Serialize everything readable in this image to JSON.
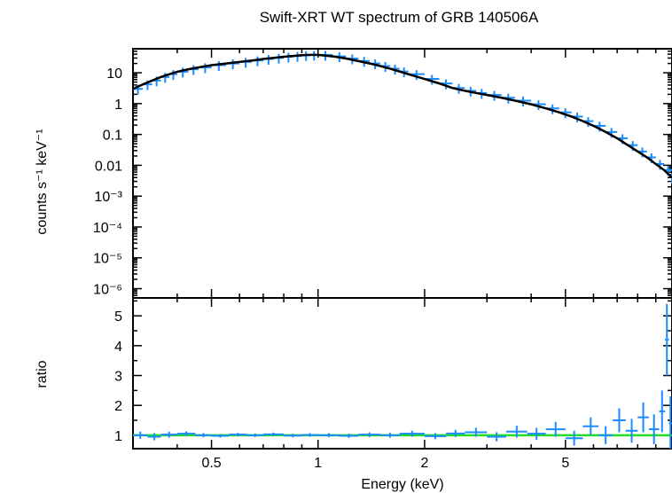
{
  "title": "Swift-XRT WT spectrum of GRB 140506A",
  "chart_data": {
    "type": "scatter",
    "title": "Swift-XRT WT spectrum of GRB 140506A",
    "xlabel": "Energy (keV)",
    "x_scale": "log",
    "xlim": [
      0.3,
      10
    ],
    "x_ticks": [
      0.5,
      1,
      2,
      5
    ],
    "x_tick_labels": [
      "0.5",
      "1",
      "2",
      "5"
    ],
    "panels": [
      {
        "name": "spectrum",
        "ylabel": "counts s⁻¹ keV⁻¹",
        "y_scale": "log",
        "ylim": [
          5e-07,
          60
        ],
        "y_ticks": [
          10,
          1,
          0.1,
          0.01,
          0.001,
          0.0001,
          1e-05,
          1e-06
        ],
        "y_tick_labels": [
          "10",
          "1",
          "0.1",
          "0.01",
          "10⁻³",
          "10⁻⁴",
          "10⁻⁵",
          "10⁻⁶"
        ],
        "data_color": "#1a8cff",
        "model_color": "#000000",
        "series": [
          {
            "kind": "data",
            "x": [
              0.3,
              0.32,
              0.34,
              0.36,
              0.38,
              0.4,
              0.43,
              0.46,
              0.5,
              0.55,
              0.6,
              0.65,
              0.7,
              0.75,
              0.8,
              0.85,
              0.9,
              0.95,
              1.0,
              1.1,
              1.2,
              1.3,
              1.4,
              1.5,
              1.6,
              1.7,
              1.8,
              2.0,
              2.2,
              2.4,
              2.6,
              2.8,
              3.0,
              3.3,
              3.6,
              4.0,
              4.4,
              4.8,
              5.2,
              5.6,
              6.0,
              6.5,
              7.0,
              7.5,
              8.0,
              8.5,
              9.0,
              9.5,
              10.0
            ],
            "y": [
              3.0,
              4.2,
              5.6,
              7.3,
              9.0,
              10.8,
              13.0,
              15.0,
              17.6,
              20.0,
              22.5,
              25.0,
              28.0,
              30.5,
              33.0,
              35.0,
              37.0,
              38.0,
              38.0,
              34.0,
              29.0,
              24.0,
              20.0,
              16.5,
              13.5,
              11.0,
              9.0,
              6.3,
              4.5,
              3.2,
              2.6,
              2.2,
              1.9,
              1.55,
              1.25,
              0.95,
              0.7,
              0.52,
              0.38,
              0.27,
              0.19,
              0.12,
              0.075,
              0.045,
              0.028,
              0.018,
              0.011,
              0.007,
              0.004
            ]
          },
          {
            "kind": "model",
            "x": [
              0.3,
              0.32,
              0.34,
              0.36,
              0.38,
              0.4,
              0.43,
              0.46,
              0.5,
              0.55,
              0.6,
              0.65,
              0.7,
              0.75,
              0.8,
              0.85,
              0.9,
              0.95,
              1.0,
              1.1,
              1.2,
              1.3,
              1.4,
              1.5,
              1.6,
              1.7,
              1.8,
              2.0,
              2.2,
              2.4,
              2.6,
              2.8,
              3.0,
              3.3,
              3.6,
              4.0,
              4.4,
              4.8,
              5.2,
              5.6,
              6.0,
              6.5,
              7.0,
              7.5,
              8.0,
              8.5,
              9.0,
              9.5,
              10.0
            ],
            "y": [
              3.0,
              4.2,
              5.6,
              7.3,
              9.0,
              10.8,
              13.0,
              15.0,
              17.6,
              20.0,
              22.5,
              25.0,
              28.0,
              30.5,
              33.0,
              35.0,
              37.0,
              38.0,
              38.0,
              34.0,
              29.0,
              24.0,
              20.0,
              16.5,
              13.5,
              11.0,
              9.0,
              6.3,
              4.5,
              3.2,
              2.6,
              2.2,
              1.9,
              1.55,
              1.25,
              0.95,
              0.7,
              0.52,
              0.38,
              0.27,
              0.19,
              0.12,
              0.075,
              0.045,
              0.028,
              0.018,
              0.011,
              0.007,
              0.004
            ]
          }
        ]
      },
      {
        "name": "ratio",
        "ylabel": "ratio",
        "y_scale": "linear",
        "ylim": [
          0.55,
          5.6
        ],
        "y_ticks": [
          1,
          2,
          3,
          4,
          5
        ],
        "y_tick_labels": [
          "1",
          "2",
          "3",
          "4",
          "5"
        ],
        "data_color": "#1a8cff",
        "unity_color": "#22dd22",
        "unity_value": 1,
        "series": [
          {
            "kind": "data",
            "x": [
              0.3,
              0.33,
              0.36,
              0.4,
              0.45,
              0.5,
              0.56,
              0.63,
              0.7,
              0.8,
              0.9,
              1.0,
              1.15,
              1.3,
              1.5,
              1.7,
              2.0,
              2.3,
              2.6,
              3.0,
              3.4,
              3.9,
              4.4,
              5.0,
              5.6,
              6.2,
              6.8,
              7.4,
              8.0,
              8.6,
              9.2,
              9.55,
              9.8
            ],
            "y": [
              1.0,
              0.95,
              1.02,
              1.05,
              1.0,
              0.98,
              1.02,
              1.0,
              1.03,
              0.99,
              1.01,
              1.0,
              0.98,
              1.02,
              1.0,
              1.05,
              0.97,
              1.06,
              1.1,
              0.95,
              1.12,
              1.05,
              1.2,
              0.9,
              1.3,
              1.0,
              1.5,
              1.15,
              1.6,
              1.2,
              1.8,
              4.2,
              1.4
            ],
            "err": [
              0.12,
              0.12,
              0.1,
              0.08,
              0.07,
              0.06,
              0.06,
              0.06,
              0.06,
              0.06,
              0.06,
              0.07,
              0.07,
              0.08,
              0.08,
              0.1,
              0.1,
              0.12,
              0.15,
              0.15,
              0.2,
              0.2,
              0.25,
              0.25,
              0.3,
              0.3,
              0.4,
              0.4,
              0.5,
              0.5,
              0.7,
              1.2,
              0.9
            ]
          }
        ]
      }
    ]
  }
}
